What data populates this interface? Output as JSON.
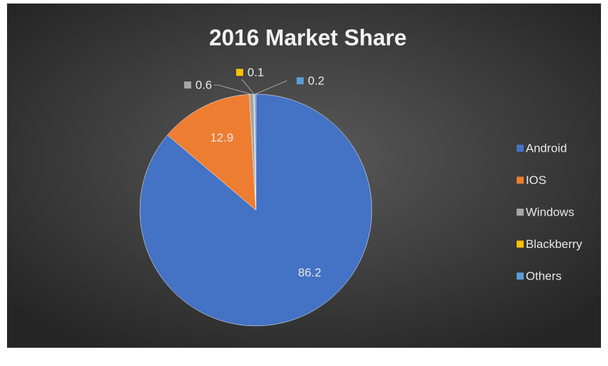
{
  "chart_data": {
    "type": "pie",
    "title": "2016 Market Share",
    "categories": [
      "Android",
      "IOS",
      "Windows",
      "Blackberry",
      "Others"
    ],
    "values": [
      86.2,
      12.9,
      0.6,
      0.1,
      0.2
    ],
    "colors": [
      "#4472c4",
      "#ed7d31",
      "#a5a5a5",
      "#ffc000",
      "#5b9bd5"
    ],
    "legend": "right"
  }
}
